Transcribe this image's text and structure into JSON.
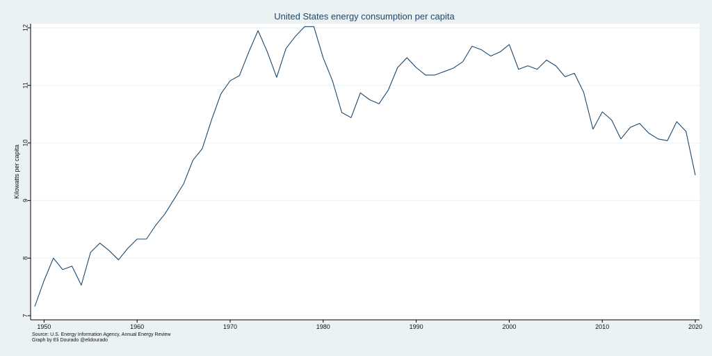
{
  "chart_data": {
    "type": "line",
    "title": "United States energy consumption per capita",
    "xlabel": "",
    "ylabel": "Kilowatts per capita",
    "xlim": [
      1949,
      2020
    ],
    "ylim": [
      7,
      12
    ],
    "xticks": [
      1950,
      1960,
      1970,
      1980,
      1990,
      2000,
      2010,
      2020
    ],
    "yticks": [
      7,
      8,
      9,
      10,
      11,
      12
    ],
    "grid": true,
    "legend": "none",
    "colors": {
      "line": "#1a476f",
      "plot_bg": "#ffffff",
      "page_bg": "#eaf2f3",
      "grid": "#eaf2f3"
    },
    "notes": [
      "Source: U.S. Energy Information Agency, Annual Energy Review",
      "Graph by Eli Dourado @elidourado"
    ],
    "series": [
      {
        "x": [
          1949,
          1950,
          1951,
          1952,
          1953,
          1954,
          1955,
          1956,
          1957,
          1958,
          1959,
          1960,
          1961,
          1962,
          1963,
          1964,
          1965,
          1966,
          1967,
          1968,
          1969,
          1970,
          1971,
          1972,
          1973,
          1974,
          1975,
          1976,
          1977,
          1978,
          1979,
          1980,
          1981,
          1982,
          1983,
          1984,
          1985,
          1986,
          1987,
          1988,
          1989,
          1990,
          1991,
          1992,
          1993,
          1994,
          1995,
          1996,
          1997,
          1998,
          1999,
          2000,
          2001,
          2002,
          2003,
          2004,
          2005,
          2006,
          2007,
          2008,
          2009,
          2010,
          2011,
          2012,
          2013,
          2014,
          2015,
          2016,
          2017,
          2018,
          2019,
          2020
        ],
        "y": [
          7.16,
          7.61,
          8.0,
          7.8,
          7.86,
          7.53,
          8.1,
          8.26,
          8.13,
          7.97,
          8.17,
          8.33,
          8.33,
          8.57,
          8.77,
          9.03,
          9.29,
          9.7,
          9.9,
          10.4,
          10.85,
          11.08,
          11.17,
          11.58,
          11.95,
          11.58,
          11.14,
          11.64,
          11.85,
          12.02,
          12.02,
          11.48,
          11.08,
          10.53,
          10.44,
          10.87,
          10.75,
          10.68,
          10.92,
          11.31,
          11.48,
          11.31,
          11.18,
          11.18,
          11.24,
          11.3,
          11.41,
          11.68,
          11.62,
          11.51,
          11.58,
          11.71,
          11.28,
          11.34,
          11.28,
          11.44,
          11.34,
          11.15,
          11.21,
          10.88,
          10.24,
          10.54,
          10.4,
          10.07,
          10.27,
          10.34,
          10.17,
          10.07,
          10.04,
          10.37,
          10.2,
          9.44
        ]
      }
    ]
  }
}
